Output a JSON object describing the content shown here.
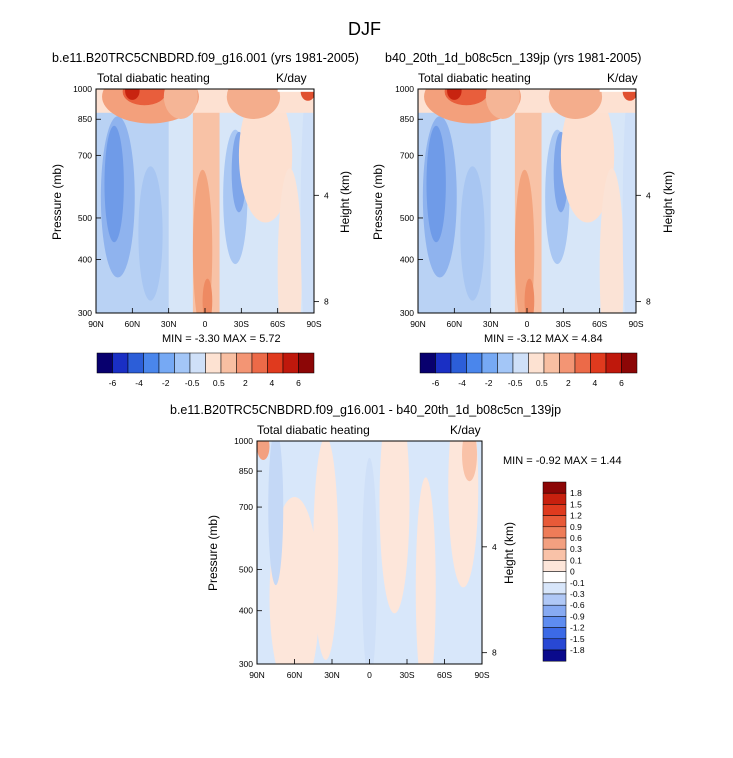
{
  "main_title": "DJF",
  "colors": {
    "neg": [
      "#08006e",
      "#1a2fc4",
      "#2c5ed8",
      "#4a86ec",
      "#76a9f4",
      "#a3c6f7",
      "#cfe0f8"
    ],
    "neg_small": [
      "#0a0a8c",
      "#1328c0",
      "#2848d4",
      "#3c6ae6",
      "#5e8cf0",
      "#87aaf2",
      "#b0c8f6",
      "#d8e6fa"
    ],
    "pos": [
      "#fde2d2",
      "#f8bfa2",
      "#f39574",
      "#ec6a48",
      "#e03a1e",
      "#bf180c",
      "#8c0606"
    ],
    "pos_small": [
      "#fde6da",
      "#f9c2a8",
      "#f3a080",
      "#ee7c58",
      "#e85a38",
      "#df3a1e",
      "#c8200e",
      "#9c0a06"
    ],
    "bg_base": "#c9dcf6"
  },
  "chart_data": [
    {
      "type": "heatmap",
      "title_left": "b.e11.B20TRC5CNBDRD.f09_g16.001 (yrs 1981-2005)",
      "title_inner": "Total diabatic heating",
      "units": "K/day",
      "ylabel": "Pressure (mb)",
      "ylabel_right": "Height (km)",
      "x_ticks": [
        "90N",
        "60N",
        "30N",
        "0",
        "30S",
        "60S",
        "90S"
      ],
      "y_ticks": [
        "300",
        "400",
        "500",
        "700",
        "850",
        "1000"
      ],
      "height_ticks": [
        "8",
        "4"
      ],
      "ylim": [
        1000,
        300
      ],
      "xlim": [
        90,
        -90
      ],
      "min_max_text": "MIN =  -3.30  MAX =   5.72",
      "min": -3.3,
      "max": 5.72,
      "colorbar_levels": [
        "-6",
        "-4",
        "-2",
        "-0.5",
        "0.5",
        "2",
        "4",
        "6"
      ]
    },
    {
      "type": "heatmap",
      "title_left": "b40_20th_1d_b08c5cn_139jp (yrs 1981-2005)",
      "title_inner": "Total diabatic heating",
      "units": "K/day",
      "ylabel": "Pressure (mb)",
      "ylabel_right": "Height (km)",
      "x_ticks": [
        "90N",
        "60N",
        "30N",
        "0",
        "30S",
        "60S",
        "90S"
      ],
      "y_ticks": [
        "300",
        "400",
        "500",
        "700",
        "850",
        "1000"
      ],
      "height_ticks": [
        "8",
        "4"
      ],
      "ylim": [
        1000,
        300
      ],
      "xlim": [
        90,
        -90
      ],
      "min_max_text": "MIN =  -3.12  MAX =   4.84",
      "min": -3.12,
      "max": 4.84,
      "colorbar_levels": [
        "-6",
        "-4",
        "-2",
        "-0.5",
        "0.5",
        "2",
        "4",
        "6"
      ]
    },
    {
      "type": "heatmap",
      "title_left": "b.e11.B20TRC5CNBDRD.f09_g16.001 - b40_20th_1d_b08c5cn_139jp",
      "title_inner": "Total diabatic heating",
      "units": "K/day",
      "ylabel": "Pressure (mb)",
      "ylabel_right": "Height (km)",
      "x_ticks": [
        "90N",
        "60N",
        "30N",
        "0",
        "30S",
        "60S",
        "90S"
      ],
      "y_ticks": [
        "300",
        "400",
        "500",
        "700",
        "850",
        "1000"
      ],
      "height_ticks": [
        "8",
        "4"
      ],
      "ylim": [
        1000,
        300
      ],
      "xlim": [
        90,
        -90
      ],
      "min_max_text": "MIN =  -0.92  MAX =   1.44",
      "min": -0.92,
      "max": 1.44,
      "colorbar_levels": [
        "1.8",
        "1.5",
        "1.2",
        "0.9",
        "0.6",
        "0.3",
        "0.1",
        "0",
        "-0.1",
        "-0.3",
        "-0.6",
        "-0.9",
        "-1.2",
        "-1.5",
        "-1.8"
      ]
    }
  ]
}
